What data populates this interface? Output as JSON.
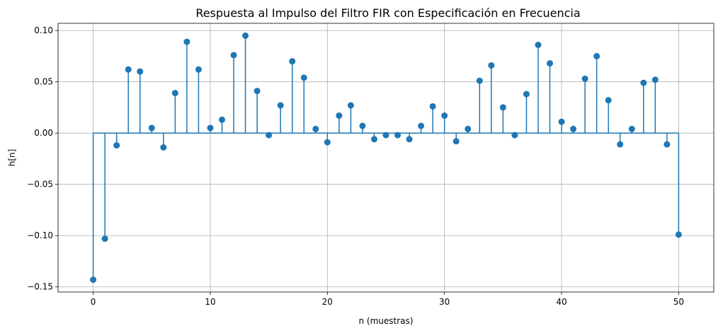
{
  "chart_data": {
    "type": "stem",
    "title": "Respuesta al Impulso del Filtro FIR con Especificación en Frecuencia",
    "xlabel": "n (muestras)",
    "ylabel": "h[n]",
    "xlim": [
      -3,
      53
    ],
    "ylim": [
      -0.155,
      0.107
    ],
    "xticks": [
      0,
      10,
      20,
      30,
      40,
      50
    ],
    "xtick_labels": [
      "0",
      "10",
      "20",
      "30",
      "40",
      "50"
    ],
    "yticks": [
      -0.15,
      -0.1,
      -0.05,
      0.0,
      0.05,
      0.1
    ],
    "ytick_labels": [
      "−0.15",
      "−0.10",
      "−0.05",
      "0.00",
      "0.05",
      "0.10"
    ],
    "grid": true,
    "baseline": 0,
    "color": "#1f77b4",
    "x": [
      0,
      1,
      2,
      3,
      4,
      5,
      6,
      7,
      8,
      9,
      10,
      11,
      12,
      13,
      14,
      15,
      16,
      17,
      18,
      19,
      20,
      21,
      22,
      23,
      24,
      25,
      26,
      27,
      28,
      29,
      30,
      31,
      32,
      33,
      34,
      35,
      36,
      37,
      38,
      39,
      40,
      41,
      42,
      43,
      44,
      45,
      46,
      47,
      48,
      49,
      50
    ],
    "values": [
      -0.143,
      -0.103,
      -0.012,
      0.062,
      0.06,
      0.005,
      -0.014,
      0.039,
      0.089,
      0.062,
      0.005,
      0.013,
      0.076,
      0.095,
      0.041,
      -0.002,
      0.027,
      0.07,
      0.054,
      0.004,
      -0.009,
      0.017,
      0.027,
      0.007,
      -0.006,
      -0.002,
      -0.002,
      -0.006,
      0.007,
      0.026,
      0.017,
      -0.008,
      0.004,
      0.051,
      0.066,
      0.025,
      -0.002,
      0.038,
      0.086,
      0.068,
      0.011,
      0.004,
      0.053,
      0.075,
      0.032,
      -0.011,
      0.004,
      0.049,
      0.052,
      -0.011,
      -0.099
    ]
  }
}
